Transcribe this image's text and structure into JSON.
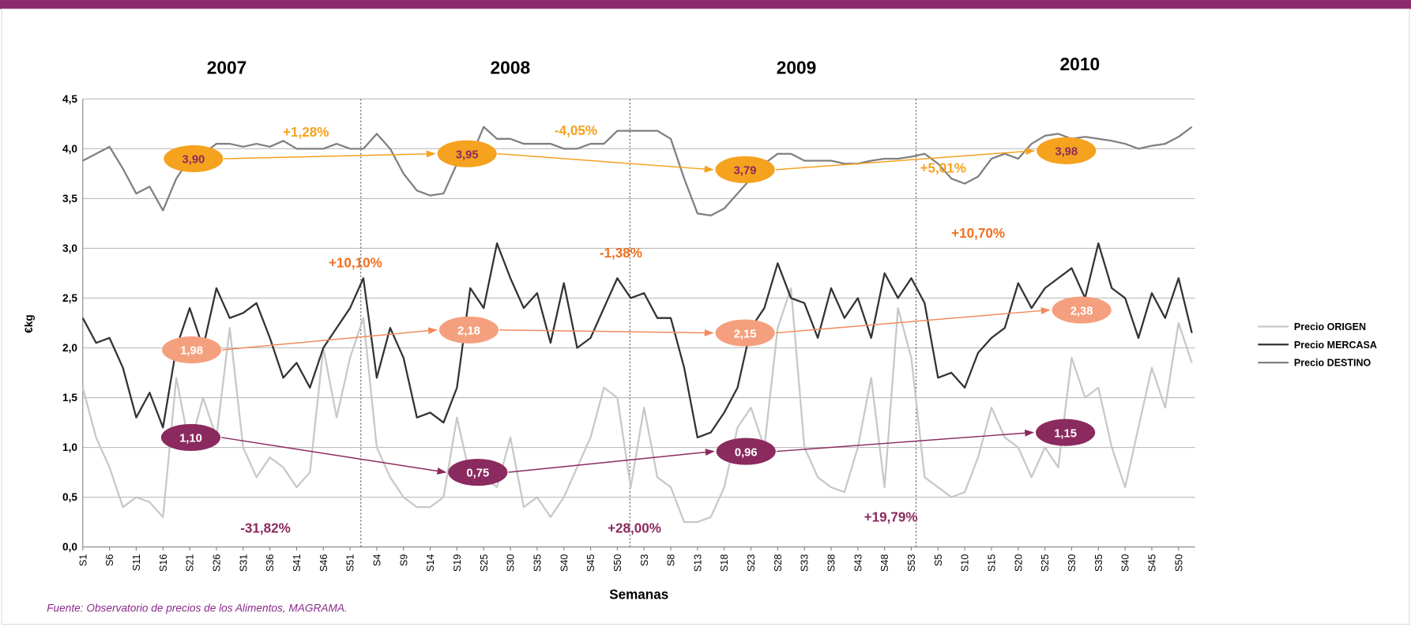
{
  "chart_data": {
    "type": "line",
    "x_label": "Semanas",
    "y_label": "€kg",
    "source": "Fuente: Observatorio de precios de los Alimentos, MAGRAMA.",
    "year_labels": [
      "2007",
      "2008",
      "2009",
      "2010"
    ],
    "ylim": [
      0,
      4.5
    ],
    "yticks": [
      {
        "value": 0,
        "label": "0,0"
      },
      {
        "value": 0.5,
        "label": "0,5"
      },
      {
        "value": 1,
        "label": "1,0"
      },
      {
        "value": 1.5,
        "label": "1,5"
      },
      {
        "value": 2,
        "label": "2,0"
      },
      {
        "value": 2.5,
        "label": "2,5"
      },
      {
        "value": 3,
        "label": "3,0"
      },
      {
        "value": 3.5,
        "label": "3,5"
      },
      {
        "value": 4,
        "label": "4,0"
      },
      {
        "value": 4.5,
        "label": "4,5"
      }
    ],
    "grid": true,
    "legend": "right",
    "categories": [
      "S1",
      null,
      "S6",
      null,
      "S11",
      null,
      "S16",
      null,
      "S21",
      null,
      "S26",
      null,
      "S31",
      null,
      "S36",
      null,
      "S41",
      null,
      "S46",
      null,
      "S51",
      null,
      "S4",
      null,
      "S9",
      null,
      "S14",
      null,
      "S19",
      null,
      "S25",
      null,
      "S30",
      null,
      "S35",
      null,
      "S40",
      null,
      "S45",
      null,
      "S50",
      null,
      "S3",
      null,
      "S8",
      null,
      "S13",
      null,
      "S18",
      null,
      "S23",
      null,
      "S28",
      null,
      "S33",
      null,
      "S38",
      null,
      "S43",
      null,
      "S48",
      null,
      "S53",
      null,
      "S5",
      null,
      "S10",
      null,
      "S15",
      null,
      "S20",
      null,
      "S25",
      null,
      "S30",
      null,
      "S35",
      null,
      "S40",
      null,
      "S45",
      null,
      "S50",
      null
    ],
    "series": [
      {
        "name": "Precio ORIGEN",
        "color": "#c8c8c8",
        "values": [
          1.6,
          1.1,
          0.8,
          0.4,
          0.5,
          0.45,
          0.3,
          1.7,
          1.0,
          1.5,
          1.1,
          2.2,
          1.0,
          0.7,
          0.9,
          0.8,
          0.6,
          0.75,
          2.0,
          1.3,
          1.9,
          2.3,
          1.0,
          0.7,
          0.5,
          0.4,
          0.4,
          0.5,
          1.3,
          0.7,
          0.7,
          0.6,
          1.1,
          0.4,
          0.5,
          0.3,
          0.5,
          0.8,
          1.1,
          1.6,
          1.5,
          0.6,
          1.4,
          0.7,
          0.6,
          0.25,
          0.25,
          0.3,
          0.6,
          1.2,
          1.4,
          1.0,
          2.2,
          2.6,
          1.0,
          0.7,
          0.6,
          0.55,
          1.0,
          1.7,
          0.6,
          2.4,
          1.9,
          0.7,
          0.6,
          0.5,
          0.55,
          0.9,
          1.4,
          1.1,
          1.0,
          0.7,
          1.0,
          0.8,
          1.9,
          1.5,
          1.6,
          1.0,
          0.6,
          1.2,
          1.8,
          1.4,
          2.25,
          1.85
        ]
      },
      {
        "name": "Precio MERCASA",
        "color": "#333333",
        "values": [
          2.3,
          2.05,
          2.1,
          1.8,
          1.3,
          1.55,
          1.2,
          2.0,
          2.4,
          2.0,
          2.6,
          2.3,
          2.35,
          2.45,
          2.1,
          1.7,
          1.85,
          1.6,
          2.0,
          2.2,
          2.4,
          2.7,
          1.7,
          2.2,
          1.9,
          1.3,
          1.35,
          1.25,
          1.6,
          2.6,
          2.4,
          3.05,
          2.7,
          2.4,
          2.55,
          2.05,
          2.65,
          2.0,
          2.1,
          2.4,
          2.7,
          2.5,
          2.55,
          2.3,
          2.3,
          1.8,
          1.1,
          1.15,
          1.35,
          1.6,
          2.2,
          2.4,
          2.85,
          2.5,
          2.45,
          2.1,
          2.6,
          2.3,
          2.5,
          2.1,
          2.75,
          2.5,
          2.7,
          2.45,
          1.7,
          1.75,
          1.6,
          1.95,
          2.1,
          2.2,
          2.65,
          2.4,
          2.6,
          2.7,
          2.8,
          2.5,
          3.05,
          2.6,
          2.5,
          2.1,
          2.55,
          2.3,
          2.7,
          2.15
        ]
      },
      {
        "name": "Precio DESTINO",
        "color": "#808080",
        "values": [
          3.88,
          3.95,
          4.02,
          3.8,
          3.55,
          3.62,
          3.38,
          3.7,
          3.9,
          3.95,
          4.05,
          4.05,
          4.02,
          4.05,
          4.02,
          4.08,
          4.0,
          4.0,
          4.0,
          4.05,
          4.0,
          4.0,
          4.15,
          4.0,
          3.75,
          3.58,
          3.53,
          3.55,
          3.85,
          3.9,
          4.22,
          4.1,
          4.1,
          4.05,
          4.05,
          4.05,
          4.0,
          4.0,
          4.05,
          4.05,
          4.18,
          4.18,
          4.18,
          4.18,
          4.1,
          3.7,
          3.35,
          3.33,
          3.4,
          3.55,
          3.7,
          3.85,
          3.95,
          3.95,
          3.88,
          3.88,
          3.88,
          3.85,
          3.85,
          3.88,
          3.9,
          3.9,
          3.92,
          3.95,
          3.85,
          3.7,
          3.65,
          3.72,
          3.9,
          3.95,
          3.9,
          4.05,
          4.13,
          4.15,
          4.1,
          4.12,
          4.1,
          4.08,
          4.05,
          4.0,
          4.03,
          4.05,
          4.12,
          4.22
        ]
      }
    ],
    "callouts": [
      {
        "color": "#f5a21f",
        "text_color": "#8b2a5f",
        "points": [
          {
            "value": 3.9,
            "label": "3,90"
          },
          {
            "value": 3.95,
            "label": "3,95"
          },
          {
            "value": 3.79,
            "label": "3,79"
          },
          {
            "value": 3.98,
            "label": "3,98"
          }
        ],
        "changes": [
          "+1,28%",
          "-4,05%",
          "+5,01%"
        ]
      },
      {
        "color": "#f4a07e",
        "text_color": "#ffffff",
        "points": [
          {
            "value": 1.98,
            "label": "1,98"
          },
          {
            "value": 2.18,
            "label": "2,18"
          },
          {
            "value": 2.15,
            "label": "2,15"
          },
          {
            "value": 2.38,
            "label": "2,38"
          }
        ],
        "changes": [
          "+10,10%",
          "-1,38%",
          "+10,70%"
        ]
      },
      {
        "color": "#8b2a5f",
        "text_color": "#ffffff",
        "points": [
          {
            "value": 1.1,
            "label": "1,10"
          },
          {
            "value": 0.75,
            "label": "0,75"
          },
          {
            "value": 0.96,
            "label": "0,96"
          },
          {
            "value": 1.15,
            "label": "1,15"
          }
        ],
        "changes": [
          "-31,82%",
          "+28,00%",
          "+19,79%"
        ]
      }
    ]
  }
}
